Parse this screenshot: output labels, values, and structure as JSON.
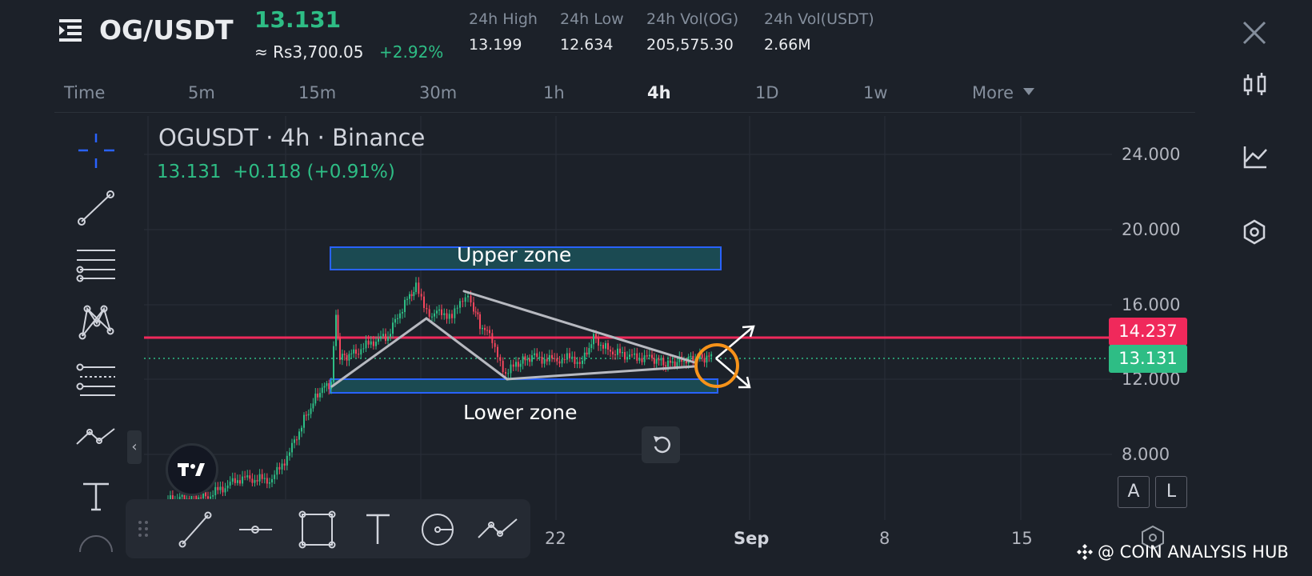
{
  "header": {
    "pair": "OG/USDT",
    "last_price": "13.131",
    "fiat_price": "≈ Rs3,700.05",
    "change_pct": "+2.92%",
    "stats": [
      {
        "label": "24h High",
        "value": "13.199"
      },
      {
        "label": "24h Low",
        "value": "12.634"
      },
      {
        "label": "24h Vol(OG)",
        "value": "205,575.30"
      },
      {
        "label": "24h Vol(USDT)",
        "value": "2.66M"
      }
    ]
  },
  "timeframes": {
    "items": [
      "Time",
      "5m",
      "15m",
      "30m",
      "1h",
      "4h",
      "1D",
      "1w",
      "More"
    ],
    "active": "4h"
  },
  "chart": {
    "symbol_line": "OGUSDT · 4h · Binance",
    "ohlc_line": "13.131  +0.118 (+0.91%)",
    "price_axis": [
      "24.000",
      "20.000",
      "16.000",
      "12.000",
      "8.000"
    ],
    "date_axis": [
      "22",
      "Sep",
      "8",
      "15"
    ],
    "resistance_tag": "14.237",
    "current_tag": "13.131",
    "upper_zone_label": "Upper zone",
    "lower_zone_label": "Lower zone",
    "scale_buttons": [
      "A",
      "L"
    ],
    "colors": {
      "up": "#2ebd85",
      "down": "#f6465d",
      "resistance": "#f0295b",
      "zone_border": "#2962ff",
      "zone_fill": "#1b4a52",
      "highlight": "#f7931a"
    }
  },
  "left_toolbar": [
    "crosshair-icon",
    "trend-line-icon",
    "horizontal-lines-icon",
    "pattern-icon",
    "fib-icon",
    "path-icon",
    "text-icon"
  ],
  "bottom_toolbar": [
    "trend-line-icon",
    "horizontal-ray-icon",
    "rectangle-icon",
    "text-icon",
    "circle-icon",
    "path-icon"
  ],
  "right_panel": [
    "close-icon",
    "candles-icon",
    "indicator-icon",
    "settings-hex-icon"
  ],
  "watermark": "@ COIN ANALYSIS HUB"
}
